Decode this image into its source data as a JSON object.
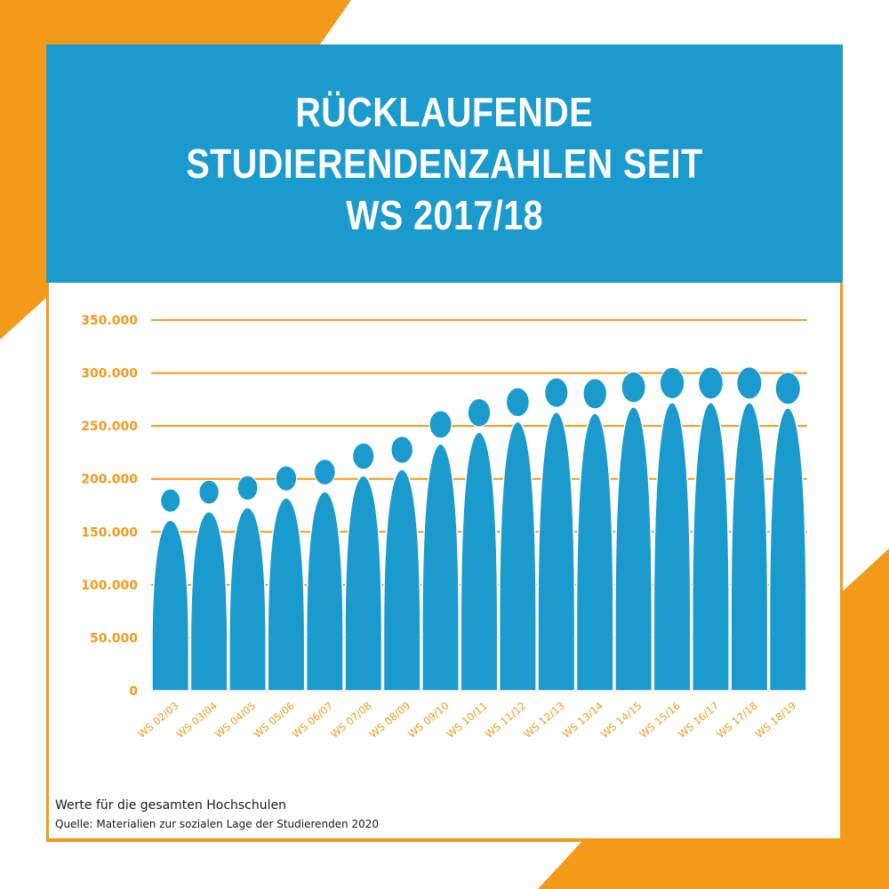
{
  "colors": {
    "accent_orange": "#f39a1b",
    "bar_blue": "#1b9acd",
    "header_blue": "#1b9acd",
    "text_dark": "#1a1a1a"
  },
  "header": {
    "title_lines": [
      "RÜCKLAUFENDE",
      "STUDIERENDENZAHLEN SEIT",
      "WS 2017/18"
    ]
  },
  "footer": {
    "note": "Werte für die gesamten Hochschulen",
    "source": "Quelle: Materialien zur sozialen Lage der Studierenden 2020"
  },
  "chart_data": {
    "type": "bar",
    "title": "RÜCKLAUFENDE STUDIERENDENZAHLEN SEIT WS 2017/18",
    "xlabel": "",
    "ylabel": "",
    "ylim": [
      0,
      350000
    ],
    "grid": true,
    "ytick_values": [
      0,
      50000,
      100000,
      150000,
      200000,
      250000,
      300000,
      350000
    ],
    "ytick_labels": [
      "0",
      "50.000",
      "100.000",
      "150.000",
      "200.000",
      "250.000",
      "300.000",
      "350.000"
    ],
    "categories": [
      "WS 02/03",
      "WS 03/04",
      "WS 04/05",
      "WS 05/06",
      "WS 06/07",
      "WS 07/08",
      "WS 08/09",
      "WS 09/10",
      "WS 10/11",
      "WS 11/12",
      "WS 12/13",
      "WS 13/14",
      "WS 14/15",
      "WS 15/16",
      "WS 16/17",
      "WS 17/18",
      "WS 18/19"
    ],
    "values": [
      161000,
      169000,
      173000,
      182000,
      188000,
      203000,
      209000,
      233000,
      244000,
      254000,
      263000,
      262000,
      268000,
      272000,
      272000,
      272000,
      267000
    ],
    "marker": "person-icon"
  }
}
